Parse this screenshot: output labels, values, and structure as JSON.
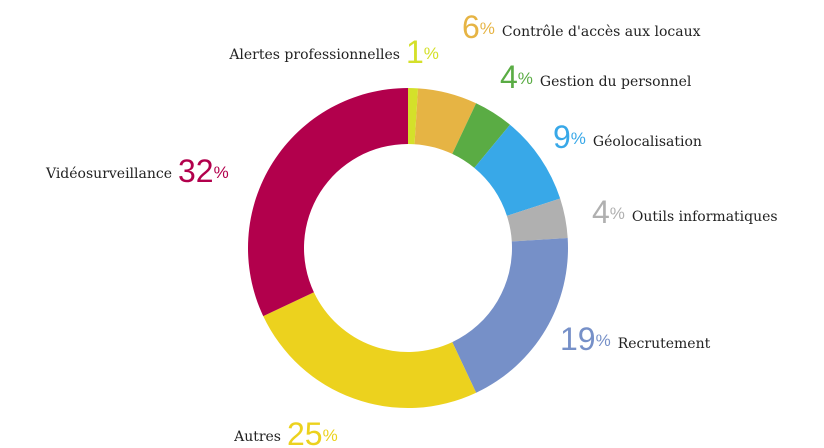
{
  "chart_data": {
    "type": "donut",
    "categories": [
      "Alertes professionnelles",
      "Contrôle d'accès aux locaux",
      "Gestion du personnel",
      "Géolocalisation",
      "Outils informatiques",
      "Recrutement",
      "Autres",
      "Vidéosurveillance"
    ],
    "values": [
      1,
      6,
      4,
      9,
      4,
      19,
      25,
      32
    ],
    "value_labels": [
      "1%",
      "6%",
      "4%",
      "9%",
      "4%",
      "19%",
      "25%",
      "32%"
    ],
    "colors": [
      "#d4e02a",
      "#e6b444",
      "#5aac44",
      "#38a8e8",
      "#b0b0b0",
      "#7690c8",
      "#ecd21e",
      "#b2004c"
    ]
  }
}
